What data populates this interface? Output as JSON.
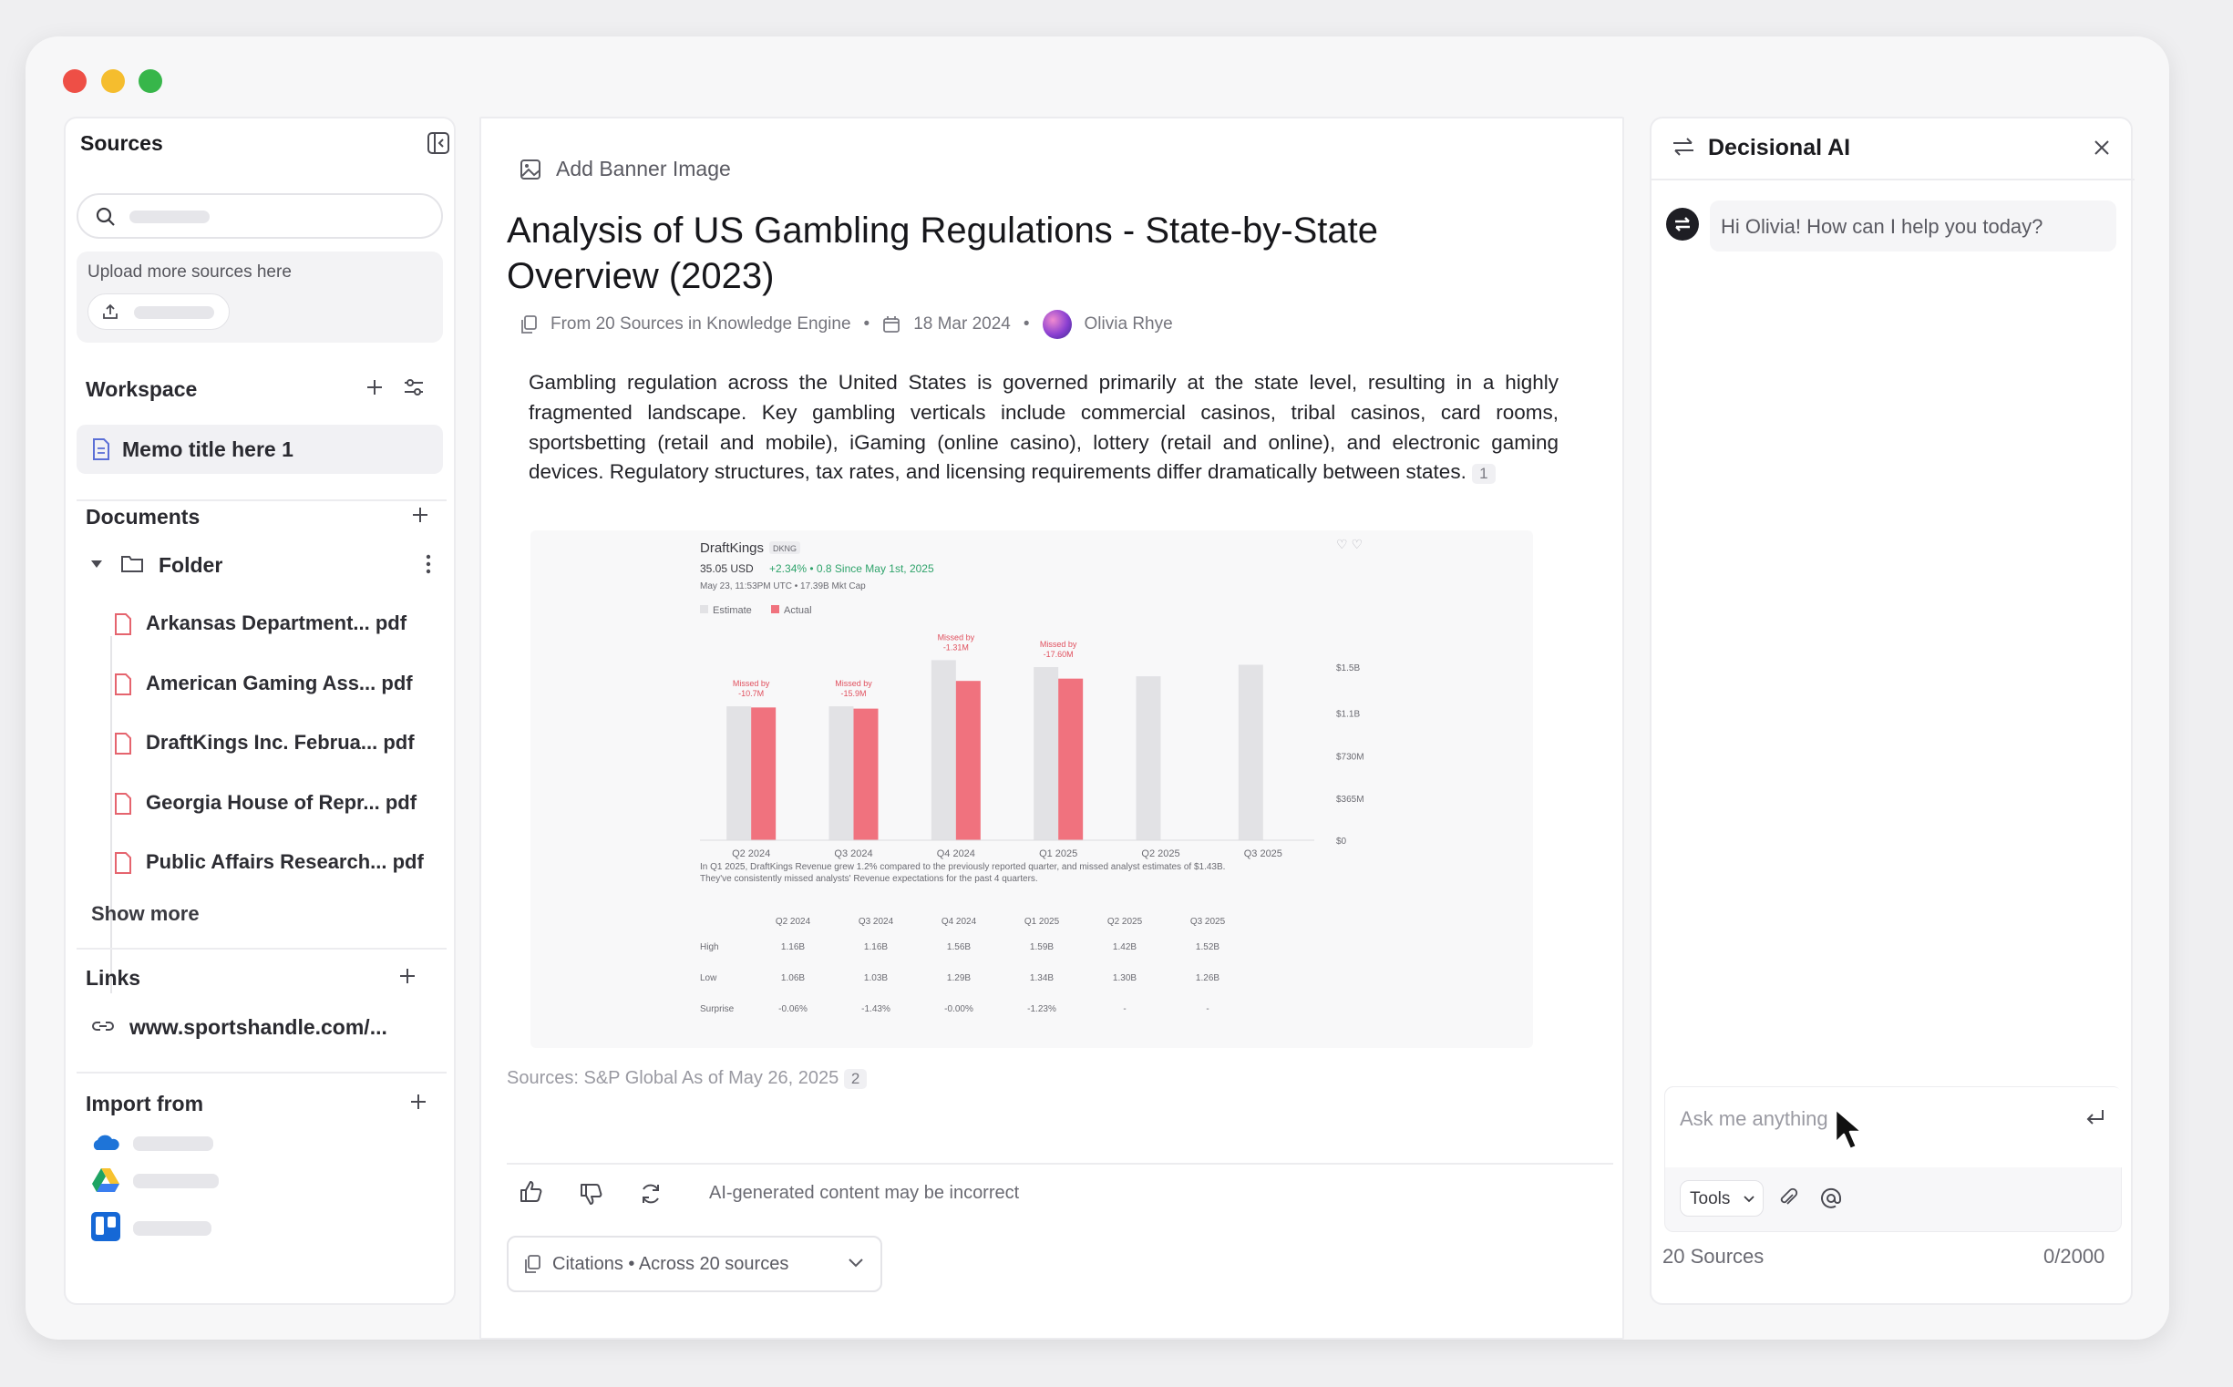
{
  "window_controls": [
    "close",
    "minimize",
    "maximize"
  ],
  "sources_panel": {
    "title": "Sources",
    "upload": {
      "title": "Upload more sources here"
    },
    "workspace": {
      "title": "Workspace",
      "memo": "Memo title here 1"
    },
    "documents": {
      "title": "Documents",
      "folder": "Folder",
      "files": [
        "Arkansas Department... pdf",
        "American Gaming Ass... pdf",
        "DraftKings Inc. Februa... pdf",
        "Georgia House of Repr... pdf",
        "Public Affairs Research... pdf"
      ],
      "show_more": "Show more"
    },
    "links": {
      "title": "Links",
      "items": [
        "www.sportshandle.com/..."
      ]
    },
    "import_from": {
      "title": "Import from",
      "services": [
        "onedrive-icon",
        "google-drive-icon",
        "trello-icon"
      ]
    }
  },
  "memo": {
    "banner_action": "Add Banner Image",
    "title": "Analysis of US Gambling Regulations - State-by-State Overview (2023)",
    "meta": {
      "sources": "From 20 Sources in Knowledge Engine",
      "date": "18 Mar 2024",
      "author": "Olivia Rhye"
    },
    "paragraph": "Gambling regulation across the United States is governed primarily at the state level, resulting in a highly fragmented landscape. Key gambling verticals include commercial casinos, tribal casinos, card rooms, sportsbetting (retail and mobile), iGaming (online casino), lottery (retail and online), and electronic gaming devices. Regulatory structures, tax rates, and licensing requirements differ dramatically between states.",
    "paragraph_citation": "1",
    "sources_line": "Sources: S&P Global As of May 26, 2025",
    "sources_citation": "2",
    "disclaimer": "AI-generated content may be incorrect",
    "citations_button": {
      "label": "Citations",
      "detail": "Across 20 sources"
    }
  },
  "chart_data": {
    "type": "bar",
    "title": "DraftKings",
    "ticker": "DKNG",
    "price_line": "35.05 USD",
    "change": "+2.34% • 0.8 Since May 1st, 2025",
    "timestamp": "May 23, 11:53PM UTC • 17.39B Mkt Cap",
    "legend": [
      "Estimate",
      "Actual"
    ],
    "categories": [
      "Q2 2024",
      "Q3 2024",
      "Q4 2024",
      "Q1 2025",
      "Q2 2025",
      "Q3 2025"
    ],
    "y_ticks": [
      "$1.5B",
      "$1.1B",
      "$730M",
      "$365M",
      "$0"
    ],
    "ylim": [
      0,
      1.5
    ],
    "series": [
      {
        "name": "Estimate",
        "values": [
          1.16,
          1.16,
          1.56,
          1.5,
          1.42,
          1.52
        ]
      },
      {
        "name": "Actual",
        "values": [
          1.15,
          1.14,
          1.38,
          1.4,
          null,
          null
        ]
      }
    ],
    "annotations": [
      {
        "category": "Q2 2024",
        "line1": "Missed by",
        "line2": "-10.7M"
      },
      {
        "category": "Q3 2024",
        "line1": "Missed by",
        "line2": "-15.9M"
      },
      {
        "category": "Q4 2024",
        "line1": "Missed by",
        "line2": "-1.31M"
      },
      {
        "category": "Q1 2025",
        "line1": "Missed by",
        "line2": "-17.60M"
      }
    ],
    "caption": "In Q1 2025, DraftKings Revenue grew 1.2% compared to the previously reported quarter, and missed analyst estimates of $1.43B. They've consistently missed analysts' Revenue expectations for the past 4 quarters.",
    "table": {
      "columns": [
        "Q2 2024",
        "Q3 2024",
        "Q4 2024",
        "Q1 2025",
        "Q2 2025",
        "Q3 2025"
      ],
      "rows": [
        {
          "label": "High",
          "values": [
            "1.16B",
            "1.16B",
            "1.56B",
            "1.59B",
            "1.42B",
            "1.52B"
          ]
        },
        {
          "label": "Low",
          "values": [
            "1.06B",
            "1.03B",
            "1.29B",
            "1.34B",
            "1.30B",
            "1.26B"
          ]
        },
        {
          "label": "Surprise",
          "values": [
            "-0.06%",
            "-1.43%",
            "-0.00%",
            "-1.23%",
            "-",
            "-"
          ]
        }
      ]
    },
    "colors": {
      "estimate": "#e2e2e5",
      "actual": "#f0727e",
      "up": "#2fa36b"
    }
  },
  "ai_panel": {
    "title": "Decisional AI",
    "greeting": "Hi Olivia! How can I help you today?",
    "input_placeholder": "Ask me anything",
    "tools": "Tools",
    "sources_count": "20 Sources",
    "char_count": "0/2000"
  }
}
